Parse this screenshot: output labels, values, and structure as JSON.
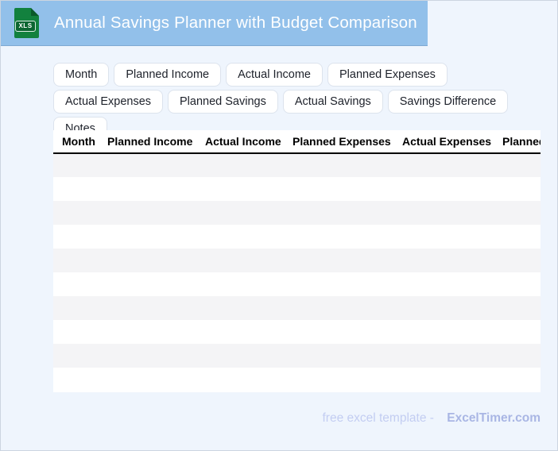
{
  "header": {
    "title": "Annual Savings Planner with Budget Comparison",
    "icon_label": "XLS",
    "bg_color": "#92c0ea",
    "icon_color": "#12813e"
  },
  "chips": {
    "row1": [
      "Month",
      "Planned Income",
      "Actual Income",
      "Planned Expenses",
      "Actual Expenses"
    ],
    "row2": [
      "Planned Savings",
      "Actual Savings",
      "Savings Difference",
      "Notes"
    ]
  },
  "table": {
    "columns": [
      "Month",
      "Planned Income",
      "Actual Income",
      "Planned Expenses",
      "Actual Expenses",
      "Planned Savings"
    ],
    "row_count": 10,
    "stripe_color": "#f4f4f6",
    "rows_empty": true
  },
  "footer": {
    "text": "free excel template -",
    "brand": "ExcelTimer.com"
  }
}
